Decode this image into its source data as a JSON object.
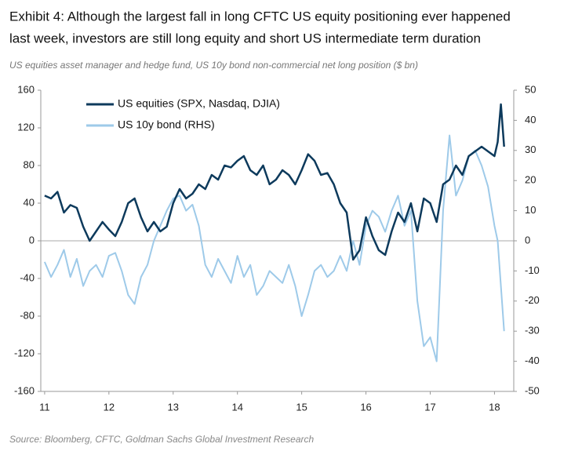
{
  "chart_data": {
    "type": "line",
    "title": [
      "Exhibit 4: Although the largest fall in long CFTC US equity positioning ever happened",
      "last week, investors are still long equity and short US intermediate  term duration"
    ],
    "subtitle": "US equities asset manager and hedge fund, US 10y bond non-commercial net long position ($ bn)",
    "source": "Source: Bloomberg, CFTC, Goldman Sachs Global Investment Research",
    "x": [
      2011.0,
      2011.1,
      2011.2,
      2011.3,
      2011.4,
      2011.5,
      2011.6,
      2011.7,
      2011.8,
      2011.9,
      2012.0,
      2012.1,
      2012.2,
      2012.3,
      2012.4,
      2012.5,
      2012.6,
      2012.7,
      2012.8,
      2012.9,
      2013.0,
      2013.1,
      2013.2,
      2013.3,
      2013.4,
      2013.5,
      2013.6,
      2013.7,
      2013.8,
      2013.9,
      2014.0,
      2014.1,
      2014.2,
      2014.3,
      2014.4,
      2014.5,
      2014.6,
      2014.7,
      2014.8,
      2014.9,
      2015.0,
      2015.1,
      2015.2,
      2015.3,
      2015.4,
      2015.5,
      2015.6,
      2015.7,
      2015.8,
      2015.9,
      2016.0,
      2016.1,
      2016.2,
      2016.3,
      2016.4,
      2016.5,
      2016.6,
      2016.7,
      2016.8,
      2016.9,
      2017.0,
      2017.1,
      2017.2,
      2017.3,
      2017.4,
      2017.5,
      2017.6,
      2017.7,
      2017.8,
      2017.9,
      2018.0,
      2018.05,
      2018.1,
      2018.15
    ],
    "series": [
      {
        "name": "US equities (SPX, Nasdaq, DJIA)",
        "color": "#0d3a5c",
        "axis": "y",
        "values": [
          48,
          45,
          52,
          30,
          38,
          35,
          15,
          0,
          10,
          20,
          12,
          5,
          20,
          40,
          45,
          25,
          10,
          20,
          10,
          15,
          40,
          55,
          45,
          50,
          60,
          55,
          70,
          65,
          80,
          78,
          85,
          90,
          75,
          70,
          80,
          60,
          65,
          75,
          70,
          60,
          75,
          92,
          85,
          70,
          72,
          60,
          40,
          30,
          -20,
          -10,
          25,
          5,
          -10,
          -15,
          10,
          30,
          20,
          40,
          10,
          45,
          40,
          20,
          60,
          65,
          80,
          70,
          90,
          95,
          100,
          95,
          90,
          105,
          145,
          100
        ]
      },
      {
        "name": "US 10y bond (RHS)",
        "color": "#9ecae9",
        "axis": "y2",
        "values": [
          -7,
          -12,
          -8,
          -3,
          -12,
          -6,
          -15,
          -10,
          -8,
          -12,
          -5,
          -4,
          -10,
          -18,
          -21,
          -12,
          -8,
          0,
          5,
          10,
          14,
          15,
          10,
          12,
          5,
          -8,
          -12,
          -6,
          -10,
          -14,
          -5,
          -12,
          -8,
          -18,
          -15,
          -10,
          -12,
          -14,
          -8,
          -15,
          -25,
          -18,
          -10,
          -8,
          -12,
          -10,
          -5,
          -10,
          0,
          -8,
          5,
          10,
          8,
          3,
          10,
          15,
          5,
          10,
          -20,
          -35,
          -32,
          -40,
          10,
          35,
          15,
          20,
          28,
          30,
          25,
          18,
          5,
          0,
          -15,
          -30
        ]
      }
    ],
    "xlim": [
      2010.94,
      2018.3
    ],
    "xticks": [
      {
        "value": 2011,
        "label": "11"
      },
      {
        "value": 2012,
        "label": "12"
      },
      {
        "value": 2013,
        "label": "13"
      },
      {
        "value": 2014,
        "label": "14"
      },
      {
        "value": 2015,
        "label": "15"
      },
      {
        "value": 2016,
        "label": "16"
      },
      {
        "value": 2017,
        "label": "17"
      },
      {
        "value": 2018,
        "label": "18"
      }
    ],
    "ylim": [
      -160,
      160
    ],
    "yticks": [
      -160,
      -120,
      -80,
      -40,
      0,
      40,
      80,
      120,
      160
    ],
    "y2lim": [
      -50,
      50
    ],
    "y2ticks": [
      -50,
      -40,
      -30,
      -20,
      -10,
      0,
      10,
      20,
      30,
      40,
      50
    ]
  }
}
